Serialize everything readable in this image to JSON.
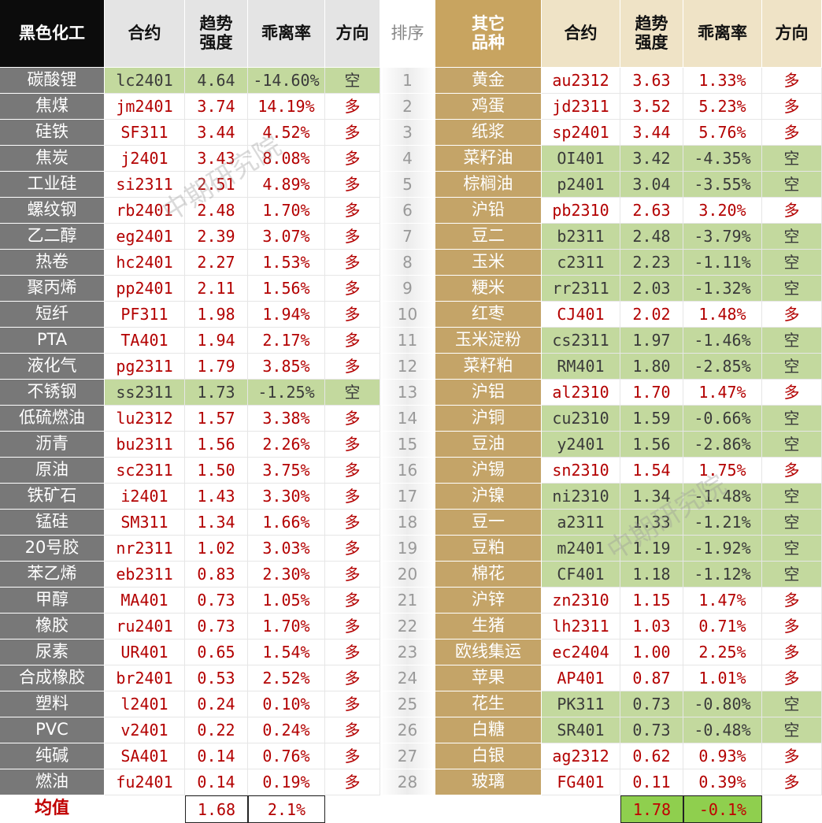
{
  "watermark": "中期研究院",
  "left_table": {
    "headers": [
      "黑色化工",
      "合约",
      "趋势\n强度",
      "乖离率",
      "方向"
    ],
    "rows": [
      {
        "name": "碳酸锂",
        "contract": "lc2401",
        "strength": "4.64",
        "deviation": "-14.60%",
        "direction": "空",
        "highlight": true
      },
      {
        "name": "焦煤",
        "contract": "jm2401",
        "strength": "3.74",
        "deviation": "14.19%",
        "direction": "多",
        "highlight": false
      },
      {
        "name": "硅铁",
        "contract": "SF311",
        "strength": "3.44",
        "deviation": "4.52%",
        "direction": "多",
        "highlight": false
      },
      {
        "name": "焦炭",
        "contract": "j2401",
        "strength": "3.43",
        "deviation": "8.08%",
        "direction": "多",
        "highlight": false
      },
      {
        "name": "工业硅",
        "contract": "si2311",
        "strength": "2.51",
        "deviation": "4.89%",
        "direction": "多",
        "highlight": false
      },
      {
        "name": "螺纹钢",
        "contract": "rb2401",
        "strength": "2.48",
        "deviation": "1.70%",
        "direction": "多",
        "highlight": false
      },
      {
        "name": "乙二醇",
        "contract": "eg2401",
        "strength": "2.39",
        "deviation": "3.07%",
        "direction": "多",
        "highlight": false
      },
      {
        "name": "热卷",
        "contract": "hc2401",
        "strength": "2.27",
        "deviation": "1.53%",
        "direction": "多",
        "highlight": false
      },
      {
        "name": "聚丙烯",
        "contract": "pp2401",
        "strength": "2.11",
        "deviation": "1.56%",
        "direction": "多",
        "highlight": false
      },
      {
        "name": "短纤",
        "contract": "PF311",
        "strength": "1.98",
        "deviation": "1.94%",
        "direction": "多",
        "highlight": false
      },
      {
        "name": "PTA",
        "contract": "TA401",
        "strength": "1.94",
        "deviation": "2.17%",
        "direction": "多",
        "highlight": false
      },
      {
        "name": "液化气",
        "contract": "pg2311",
        "strength": "1.79",
        "deviation": "3.85%",
        "direction": "多",
        "highlight": false
      },
      {
        "name": "不锈钢",
        "contract": "ss2311",
        "strength": "1.73",
        "deviation": "-1.25%",
        "direction": "空",
        "highlight": true
      },
      {
        "name": "低硫燃油",
        "contract": "lu2312",
        "strength": "1.57",
        "deviation": "3.38%",
        "direction": "多",
        "highlight": false
      },
      {
        "name": "沥青",
        "contract": "bu2311",
        "strength": "1.56",
        "deviation": "2.26%",
        "direction": "多",
        "highlight": false
      },
      {
        "name": "原油",
        "contract": "sc2311",
        "strength": "1.50",
        "deviation": "3.75%",
        "direction": "多",
        "highlight": false
      },
      {
        "name": "铁矿石",
        "contract": "i2401",
        "strength": "1.43",
        "deviation": "3.30%",
        "direction": "多",
        "highlight": false
      },
      {
        "name": "锰硅",
        "contract": "SM311",
        "strength": "1.34",
        "deviation": "1.66%",
        "direction": "多",
        "highlight": false
      },
      {
        "name": "20号胶",
        "contract": "nr2311",
        "strength": "1.02",
        "deviation": "3.03%",
        "direction": "多",
        "highlight": false
      },
      {
        "name": "苯乙烯",
        "contract": "eb2311",
        "strength": "0.83",
        "deviation": "2.30%",
        "direction": "多",
        "highlight": false
      },
      {
        "name": "甲醇",
        "contract": "MA401",
        "strength": "0.73",
        "deviation": "1.05%",
        "direction": "多",
        "highlight": false
      },
      {
        "name": "橡胶",
        "contract": "ru2401",
        "strength": "0.73",
        "deviation": "1.70%",
        "direction": "多",
        "highlight": false
      },
      {
        "name": "尿素",
        "contract": "UR401",
        "strength": "0.65",
        "deviation": "1.54%",
        "direction": "多",
        "highlight": false
      },
      {
        "name": "合成橡胶",
        "contract": "br2401",
        "strength": "0.53",
        "deviation": "2.52%",
        "direction": "多",
        "highlight": false
      },
      {
        "name": "塑料",
        "contract": "l2401",
        "strength": "0.24",
        "deviation": "0.10%",
        "direction": "多",
        "highlight": false
      },
      {
        "name": "PVC",
        "contract": "v2401",
        "strength": "0.22",
        "deviation": "0.24%",
        "direction": "多",
        "highlight": false
      },
      {
        "name": "纯碱",
        "contract": "SA401",
        "strength": "0.14",
        "deviation": "0.76%",
        "direction": "多",
        "highlight": false
      },
      {
        "name": "燃油",
        "contract": "fu2401",
        "strength": "0.14",
        "deviation": "0.19%",
        "direction": "多",
        "highlight": false
      }
    ],
    "footer": {
      "label": "均值",
      "strength": "1.68",
      "deviation": "2.1%"
    }
  },
  "rank_header": "排序",
  "right_table": {
    "headers": [
      "其它\n品种",
      "合约",
      "趋势\n强度",
      "乖离率",
      "方向"
    ],
    "rows": [
      {
        "rank": 1,
        "name": "黄金",
        "contract": "au2312",
        "strength": "3.63",
        "deviation": "1.33%",
        "direction": "多",
        "highlight": false
      },
      {
        "rank": 2,
        "name": "鸡蛋",
        "contract": "jd2311",
        "strength": "3.52",
        "deviation": "5.23%",
        "direction": "多",
        "highlight": false
      },
      {
        "rank": 3,
        "name": "纸浆",
        "contract": "sp2401",
        "strength": "3.44",
        "deviation": "5.76%",
        "direction": "多",
        "highlight": false
      },
      {
        "rank": 4,
        "name": "菜籽油",
        "contract": "OI401",
        "strength": "3.42",
        "deviation": "-4.35%",
        "direction": "空",
        "highlight": true
      },
      {
        "rank": 5,
        "name": "棕榈油",
        "contract": "p2401",
        "strength": "3.04",
        "deviation": "-3.55%",
        "direction": "空",
        "highlight": true
      },
      {
        "rank": 6,
        "name": "沪铅",
        "contract": "pb2310",
        "strength": "2.63",
        "deviation": "3.20%",
        "direction": "多",
        "highlight": false
      },
      {
        "rank": 7,
        "name": "豆二",
        "contract": "b2311",
        "strength": "2.48",
        "deviation": "-3.79%",
        "direction": "空",
        "highlight": true
      },
      {
        "rank": 8,
        "name": "玉米",
        "contract": "c2311",
        "strength": "2.23",
        "deviation": "-1.11%",
        "direction": "空",
        "highlight": true
      },
      {
        "rank": 9,
        "name": "粳米",
        "contract": "rr2311",
        "strength": "2.03",
        "deviation": "-1.32%",
        "direction": "空",
        "highlight": true
      },
      {
        "rank": 10,
        "name": "红枣",
        "contract": "CJ401",
        "strength": "2.02",
        "deviation": "1.48%",
        "direction": "多",
        "highlight": false
      },
      {
        "rank": 11,
        "name": "玉米淀粉",
        "contract": "cs2311",
        "strength": "1.97",
        "deviation": "-1.46%",
        "direction": "空",
        "highlight": true
      },
      {
        "rank": 12,
        "name": "菜籽粕",
        "contract": "RM401",
        "strength": "1.80",
        "deviation": "-2.85%",
        "direction": "空",
        "highlight": true
      },
      {
        "rank": 13,
        "name": "沪铝",
        "contract": "al2310",
        "strength": "1.70",
        "deviation": "1.47%",
        "direction": "多",
        "highlight": false
      },
      {
        "rank": 14,
        "name": "沪铜",
        "contract": "cu2310",
        "strength": "1.59",
        "deviation": "-0.66%",
        "direction": "空",
        "highlight": true
      },
      {
        "rank": 15,
        "name": "豆油",
        "contract": "y2401",
        "strength": "1.56",
        "deviation": "-2.86%",
        "direction": "空",
        "highlight": true
      },
      {
        "rank": 16,
        "name": "沪锡",
        "contract": "sn2310",
        "strength": "1.54",
        "deviation": "1.75%",
        "direction": "多",
        "highlight": false
      },
      {
        "rank": 17,
        "name": "沪镍",
        "contract": "ni2310",
        "strength": "1.34",
        "deviation": "-1.48%",
        "direction": "空",
        "highlight": true
      },
      {
        "rank": 18,
        "name": "豆一",
        "contract": "a2311",
        "strength": "1.33",
        "deviation": "-1.21%",
        "direction": "空",
        "highlight": true
      },
      {
        "rank": 19,
        "name": "豆粕",
        "contract": "m2401",
        "strength": "1.19",
        "deviation": "-1.92%",
        "direction": "空",
        "highlight": true
      },
      {
        "rank": 20,
        "name": "棉花",
        "contract": "CF401",
        "strength": "1.18",
        "deviation": "-1.12%",
        "direction": "空",
        "highlight": true
      },
      {
        "rank": 21,
        "name": "沪锌",
        "contract": "zn2310",
        "strength": "1.15",
        "deviation": "1.47%",
        "direction": "多",
        "highlight": false
      },
      {
        "rank": 22,
        "name": "生猪",
        "contract": "lh2311",
        "strength": "1.03",
        "deviation": "0.71%",
        "direction": "多",
        "highlight": false
      },
      {
        "rank": 23,
        "name": "欧线集运",
        "contract": "ec2404",
        "strength": "1.00",
        "deviation": "2.25%",
        "direction": "多",
        "highlight": false
      },
      {
        "rank": 24,
        "name": "苹果",
        "contract": "AP401",
        "strength": "0.87",
        "deviation": "1.01%",
        "direction": "多",
        "highlight": false
      },
      {
        "rank": 25,
        "name": "花生",
        "contract": "PK311",
        "strength": "0.73",
        "deviation": "-0.80%",
        "direction": "空",
        "highlight": true
      },
      {
        "rank": 26,
        "name": "白糖",
        "contract": "SR401",
        "strength": "0.73",
        "deviation": "-0.48%",
        "direction": "空",
        "highlight": true
      },
      {
        "rank": 27,
        "name": "白银",
        "contract": "ag2312",
        "strength": "0.62",
        "deviation": "0.93%",
        "direction": "多",
        "highlight": false
      },
      {
        "rank": 28,
        "name": "玻璃",
        "contract": "FG401",
        "strength": "0.11",
        "deviation": "0.39%",
        "direction": "多",
        "highlight": false
      }
    ],
    "footer": {
      "strength": "1.78",
      "deviation": "-0.1%"
    }
  }
}
